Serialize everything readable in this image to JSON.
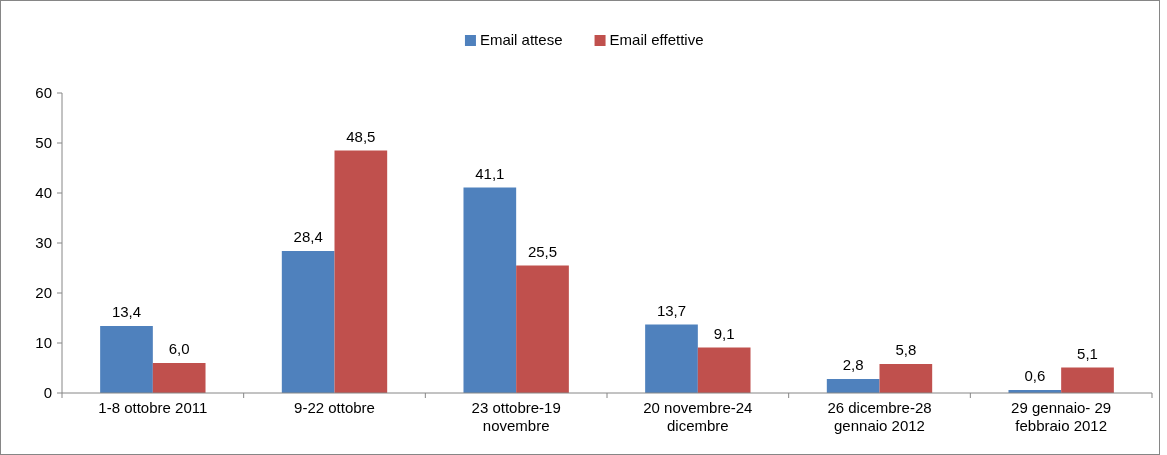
{
  "chart_data": {
    "type": "bar",
    "categories": [
      "1-8 ottobre 2011",
      "9-22 ottobre",
      "23 ottobre-19 novembre",
      "20 novembre-24 dicembre",
      "26 dicembre-28 gennaio 2012",
      "29 gennaio- 29 febbraio 2012"
    ],
    "series": [
      {
        "name": "Email attese",
        "color": "#4f81bd",
        "values": [
          13.4,
          28.4,
          41.1,
          13.7,
          2.8,
          0.6
        ],
        "value_labels": [
          "13,4",
          "28,4",
          "41,1",
          "13,7",
          "2,8",
          "0,6"
        ]
      },
      {
        "name": "Email effettive",
        "color": "#c0504d",
        "values": [
          6.0,
          48.5,
          25.5,
          9.1,
          5.8,
          5.1
        ],
        "value_labels": [
          "6,0",
          "48,5",
          "25,5",
          "9,1",
          "5,8",
          "5,1"
        ]
      }
    ],
    "ylim": [
      0,
      60
    ],
    "yticks": [
      0,
      10,
      20,
      30,
      40,
      50,
      60
    ],
    "grid": false,
    "legend": "top"
  }
}
